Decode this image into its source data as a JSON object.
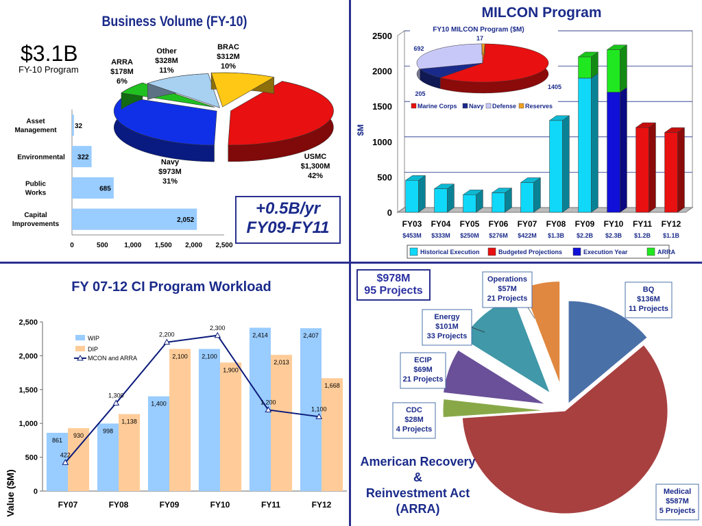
{
  "quad1": {
    "title": "Business Volume (FY-10)",
    "total_value": "$3.1B",
    "total_label": "FY-10 Program"
  },
  "quad2": {
    "title": "MILCON Program",
    "inset_title": "FY10 MILCON Program ($M)",
    "ylabel": "$M"
  },
  "quad3": {
    "title": "FY 07-12 CI Program Workload",
    "ylabel": "Value ($M)"
  },
  "quad4": {
    "total": "$978M",
    "projects": "95 Projects",
    "footer_lines": [
      "American Recovery",
      "&",
      "Reinvestment Act",
      "(ARRA)"
    ]
  },
  "callout": {
    "line1": "+0.5B/yr",
    "line2": "FY09-FY11"
  },
  "chart_data": [
    {
      "type": "pie",
      "id": "business-volume",
      "title": "Business Volume (FY-10)",
      "slices": [
        {
          "label": "USMC",
          "amount": "$1,300M",
          "pct": "42%",
          "value": 1300,
          "color": "#e81010"
        },
        {
          "label": "Navy",
          "amount": "$973M",
          "pct": "31%",
          "value": 973,
          "color": "#1030e8"
        },
        {
          "label": "ARRA",
          "amount": "$178M",
          "pct": "6%",
          "value": 178,
          "color": "#20c020"
        },
        {
          "label": "Other",
          "amount": "$328M",
          "pct": "11%",
          "value": 328,
          "color": "#a8d0f0"
        },
        {
          "label": "BRAC",
          "amount": "$312M",
          "pct": "10%",
          "value": 312,
          "color": "#ffc814"
        }
      ]
    },
    {
      "type": "bar",
      "id": "business-lines",
      "orientation": "horizontal",
      "categories": [
        "Asset Management",
        "Environmental",
        "Public Works",
        "Capital Improvements"
      ],
      "values": [
        32,
        322,
        685,
        2052
      ],
      "value_labels": [
        "32",
        "322",
        "685",
        "2,052"
      ],
      "xticks": [
        "0",
        "500",
        "1,000",
        "1,500",
        "2,000",
        "2,500"
      ],
      "xlim": [
        0,
        2500
      ],
      "color": "#99ccff"
    },
    {
      "type": "bar",
      "id": "milcon",
      "title": "MILCON Program",
      "ylabel": "$M",
      "ylim": [
        0,
        2500
      ],
      "yticks": [
        "0",
        "500",
        "1000",
        "1500",
        "2000",
        "2500"
      ],
      "categories": [
        "FY03",
        "FY04",
        "FY05",
        "FY06",
        "FY07",
        "FY08",
        "FY09",
        "FY10",
        "FY11",
        "FY12"
      ],
      "value_labels": [
        "$453M",
        "$333M",
        "$250M",
        "$276M",
        "$422M",
        "$1.3B",
        "$2.2B",
        "$2.3B",
        "$1.2B",
        "$1.1B"
      ],
      "series": [
        {
          "name": "Historical Execution",
          "color": "#10d8f8",
          "values": [
            453,
            333,
            250,
            276,
            422,
            1300,
            1900,
            0,
            0,
            0
          ]
        },
        {
          "name": "Budgeted Projections",
          "color": "#e81010",
          "values": [
            0,
            0,
            0,
            0,
            0,
            0,
            0,
            0,
            1200,
            1130
          ]
        },
        {
          "name": "Execution Year",
          "color": "#1010d8",
          "values": [
            0,
            0,
            0,
            0,
            0,
            0,
            0,
            1700,
            0,
            0
          ]
        },
        {
          "name": "ARRA",
          "color": "#20e820",
          "values": [
            0,
            0,
            0,
            0,
            0,
            0,
            300,
            600,
            0,
            0
          ]
        }
      ]
    },
    {
      "type": "pie",
      "id": "milcon-fy10",
      "title": "FY10 MILCON Program ($M)",
      "legend": [
        "Marine Corps",
        "Navy",
        "Defense",
        "Reserves"
      ],
      "slices": [
        {
          "label": "Marine Corps",
          "value": 1405,
          "text": "1405",
          "color": "#e81010"
        },
        {
          "label": "Navy",
          "value": 205,
          "text": "205",
          "color": "#1a2a8a"
        },
        {
          "label": "Defense",
          "value": 692,
          "text": "692",
          "color": "#c8c8f8"
        },
        {
          "label": "Reserves",
          "value": 17,
          "text": "17",
          "color": "#f0a020"
        }
      ]
    },
    {
      "type": "bar",
      "id": "ci-workload",
      "title": "FY 07-12 CI Program Workload",
      "ylabel": "Value ($M)",
      "ylim": [
        0,
        2500
      ],
      "yticks": [
        "0",
        "500",
        "1,000",
        "1,500",
        "2,000",
        "2,500"
      ],
      "categories": [
        "FY07",
        "FY08",
        "FY09",
        "FY10",
        "FY11",
        "FY12"
      ],
      "series": [
        {
          "name": "WIP",
          "type": "bar",
          "color": "#99ccff",
          "values": [
            861,
            998,
            1400,
            2100,
            2414,
            2407
          ],
          "labels": [
            "861",
            "998",
            "1,400",
            "2,100",
            "2,414",
            "2,407"
          ]
        },
        {
          "name": "DIP",
          "type": "bar",
          "color": "#ffcc99",
          "values": [
            930,
            1138,
            2100,
            1900,
            2013,
            1668
          ],
          "labels": [
            "930",
            "1,138",
            "2,100",
            "1,900",
            "2,013",
            "1,668"
          ]
        },
        {
          "name": "MCON and ARRA",
          "type": "line",
          "color": "#0a1a7a",
          "values": [
            422,
            1300,
            2200,
            2300,
            1200,
            1100
          ],
          "labels": [
            "422",
            "1,300",
            "2,200",
            "2,300",
            "1,200",
            "1,100"
          ]
        }
      ]
    },
    {
      "type": "pie",
      "id": "arra",
      "title": "American Recovery & Reinvestment Act (ARRA)",
      "slices": [
        {
          "label": "BQ",
          "amount": "$136M",
          "projects": "11 Projects",
          "value": 136,
          "color": "#4a70a8"
        },
        {
          "label": "Medical",
          "amount": "$587M",
          "projects": "5 Projects",
          "value": 587,
          "color": "#a84040"
        },
        {
          "label": "CDC",
          "amount": "$28M",
          "projects": "4 Projects",
          "value": 28,
          "color": "#88a848"
        },
        {
          "label": "ECIP",
          "amount": "$69M",
          "projects": "21 Projects",
          "value": 69,
          "color": "#6a5098"
        },
        {
          "label": "Energy",
          "amount": "$101M",
          "projects": "33 Projects",
          "value": 101,
          "color": "#4098a8"
        },
        {
          "label": "Operations",
          "amount": "$57M",
          "projects": "21 Projects",
          "value": 57,
          "color": "#e08840"
        }
      ]
    }
  ]
}
